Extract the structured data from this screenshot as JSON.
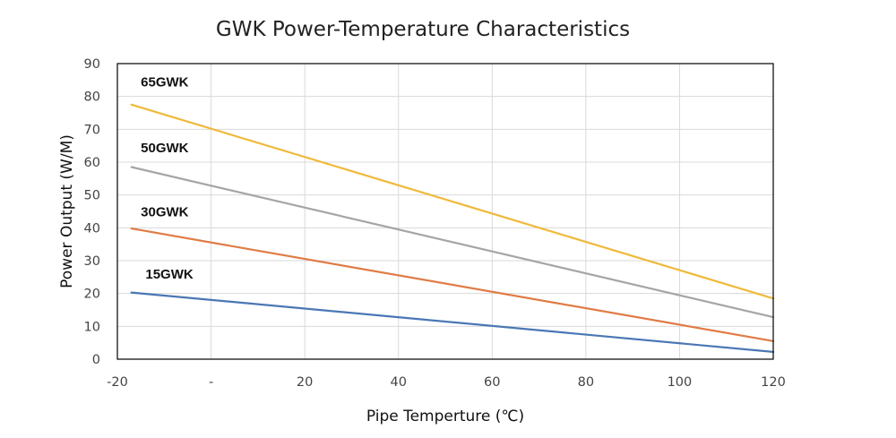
{
  "chart_data": {
    "type": "line",
    "title": "GWK Power-Temperature Characteristics",
    "xlabel": "Pipe Temperture (℃)",
    "ylabel": "Power Output (W/M)",
    "xlim": [
      -20,
      120
    ],
    "ylim": [
      0,
      90
    ],
    "grid": true,
    "x_ticks": [
      {
        "value": -20,
        "label": "-20"
      },
      {
        "value": 0,
        "label": "-"
      },
      {
        "value": 20,
        "label": "20"
      },
      {
        "value": 40,
        "label": "40"
      },
      {
        "value": 60,
        "label": "60"
      },
      {
        "value": 80,
        "label": "80"
      },
      {
        "value": 100,
        "label": "100"
      },
      {
        "value": 120,
        "label": "120"
      }
    ],
    "y_ticks": [
      {
        "value": 0,
        "label": "0"
      },
      {
        "value": 10,
        "label": "10"
      },
      {
        "value": 20,
        "label": "20"
      },
      {
        "value": 30,
        "label": "30"
      },
      {
        "value": 40,
        "label": "40"
      },
      {
        "value": 50,
        "label": "50"
      },
      {
        "value": 60,
        "label": "60"
      },
      {
        "value": 70,
        "label": "70"
      },
      {
        "value": 80,
        "label": "80"
      },
      {
        "value": 90,
        "label": "90"
      }
    ],
    "series": [
      {
        "name": "65GWK",
        "color": "#f0b93a",
        "x": [
          -17,
          120
        ],
        "values": [
          77.5,
          18.5
        ],
        "label_anchor": {
          "x": -15,
          "y": 83
        }
      },
      {
        "name": "50GWK",
        "color": "#a5a5a5",
        "x": [
          -17,
          120
        ],
        "values": [
          58.5,
          12.8
        ],
        "label_anchor": {
          "x": -15,
          "y": 63
        }
      },
      {
        "name": "30GWK",
        "color": "#e07b45",
        "x": [
          -17,
          120
        ],
        "values": [
          39.8,
          5.5
        ],
        "label_anchor": {
          "x": -15,
          "y": 43.5
        }
      },
      {
        "name": "15GWK",
        "color": "#4a77b4",
        "x": [
          -17,
          120
        ],
        "values": [
          20.3,
          2.2
        ],
        "label_anchor": {
          "x": -14,
          "y": 24.5
        }
      }
    ]
  }
}
